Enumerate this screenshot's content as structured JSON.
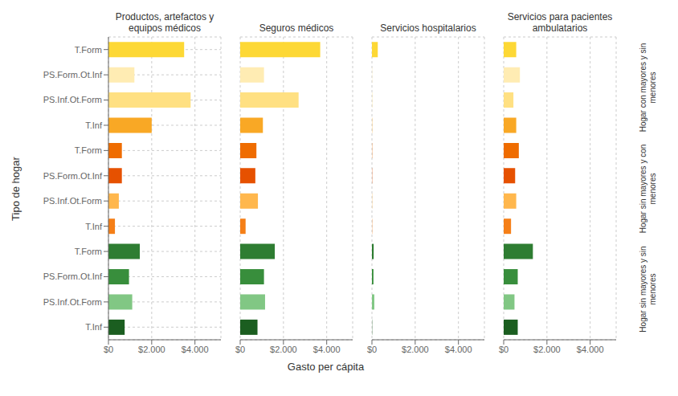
{
  "chart_data": [
    {
      "type": "bar",
      "orientation": "horizontal",
      "title": "Productos, artefactos y\nequipos médicos",
      "ylabel": "Tipo de hogar",
      "xlabel": "Gasto per cápita",
      "categories": [
        "T.Form",
        "PS.Form.Ot.Inf",
        "PS.Inf.Ot.Form",
        "T.Inf",
        "T.Form",
        "PS.Form.Ot.Inf",
        "PS.Inf.Ot.Form",
        "T.Inf",
        "T.Form",
        "PS.Form.Ot.Inf",
        "PS.Inf.Ot.Form",
        "T.Inf"
      ],
      "values": [
        3500,
        1200,
        3800,
        2000,
        620,
        620,
        480,
        300,
        1450,
        950,
        1100,
        750
      ],
      "colors": [
        "#FDD835",
        "#FFECB3",
        "#FFE082",
        "#F9A825",
        "#EF6C00",
        "#E65100",
        "#FFB74D",
        "#F57F17",
        "#2E7D32",
        "#388E3C",
        "#81C784",
        "#1B5E20"
      ],
      "xlim": [
        0,
        5200
      ],
      "xticks": [
        {
          "value": 0,
          "label": "$0"
        },
        {
          "value": 2000,
          "label": "$2.000"
        },
        {
          "value": 4000,
          "label": "$4.000"
        }
      ],
      "grid": true
    },
    {
      "type": "bar",
      "orientation": "horizontal",
      "title": "Seguros médicos",
      "tick_labels": "x",
      "categories": [
        "T.Form",
        "PS.Form.Ot.Inf",
        "PS.Inf.Ot.Form",
        "T.Inf",
        "T.Form",
        "PS.Form.Ot.Inf",
        "PS.Inf.Ot.Form",
        "T.Inf",
        "T.Form",
        "PS.Form.Ot.Inf",
        "PS.Inf.Ot.Form",
        "T.Inf"
      ],
      "values": [
        3700,
        1100,
        2700,
        1050,
        750,
        700,
        820,
        250,
        1600,
        1100,
        1150,
        800
      ],
      "colors": [
        "#FDD835",
        "#FFECB3",
        "#FFE082",
        "#F9A825",
        "#EF6C00",
        "#E65100",
        "#FFB74D",
        "#F57F17",
        "#2E7D32",
        "#388E3C",
        "#81C784",
        "#1B5E20"
      ],
      "xlim": [
        0,
        5200
      ],
      "xticks": [
        {
          "value": 0,
          "label": "$0"
        },
        {
          "value": 2000,
          "label": "$2.000"
        },
        {
          "value": 4000,
          "label": "$4.000"
        }
      ],
      "grid": true
    },
    {
      "type": "bar",
      "orientation": "horizontal",
      "title": "Servicios hospitalarios",
      "tick_labels": "x",
      "categories": [
        "T.Form",
        "PS.Form.Ot.Inf",
        "PS.Inf.Ot.Form",
        "T.Inf",
        "T.Form",
        "PS.Form.Ot.Inf",
        "PS.Inf.Ot.Form",
        "T.Inf",
        "T.Form",
        "PS.Form.Ot.Inf",
        "PS.Inf.Ot.Form",
        "T.Inf"
      ],
      "values": [
        270,
        10,
        10,
        10,
        10,
        10,
        10,
        10,
        80,
        70,
        110,
        10
      ],
      "colors": [
        "#FDD835",
        "#FFECB3",
        "#FFE082",
        "#F9A825",
        "#EF6C00",
        "#E65100",
        "#FFB74D",
        "#F57F17",
        "#2E7D32",
        "#388E3C",
        "#81C784",
        "#1B5E20"
      ],
      "xlim": [
        0,
        5200
      ],
      "xticks": [
        {
          "value": 0,
          "label": "$0"
        },
        {
          "value": 2000,
          "label": "$2.000"
        },
        {
          "value": 4000,
          "label": "$4.000"
        }
      ],
      "grid": true
    },
    {
      "type": "bar",
      "orientation": "horizontal",
      "title": "Servicios para pacientes\nambulatarios",
      "tick_labels": "x",
      "categories": [
        "T.Form",
        "PS.Form.Ot.Inf",
        "PS.Inf.Ot.Form",
        "T.Inf",
        "T.Form",
        "PS.Form.Ot.Inf",
        "PS.Inf.Ot.Form",
        "T.Inf",
        "T.Form",
        "PS.Form.Ot.Inf",
        "PS.Inf.Ot.Form",
        "T.Inf"
      ],
      "values": [
        580,
        750,
        450,
        580,
        700,
        530,
        580,
        340,
        1350,
        650,
        500,
        650
      ],
      "colors": [
        "#FDD835",
        "#FFECB3",
        "#FFE082",
        "#F9A825",
        "#EF6C00",
        "#E65100",
        "#FFB74D",
        "#F57F17",
        "#2E7D32",
        "#388E3C",
        "#81C784",
        "#1B5E20"
      ],
      "xlim": [
        0,
        5200
      ],
      "xticks": [
        {
          "value": 0,
          "label": "$0"
        },
        {
          "value": 2000,
          "label": "$2.000"
        },
        {
          "value": 4000,
          "label": "$4.000"
        }
      ],
      "grid": true,
      "annotations": [
        "Hogar con mayores y sin\nmenores",
        "Hogar sin mayores y con\nmenores",
        "Hogar sin mayores y sin\nmenores"
      ]
    }
  ]
}
